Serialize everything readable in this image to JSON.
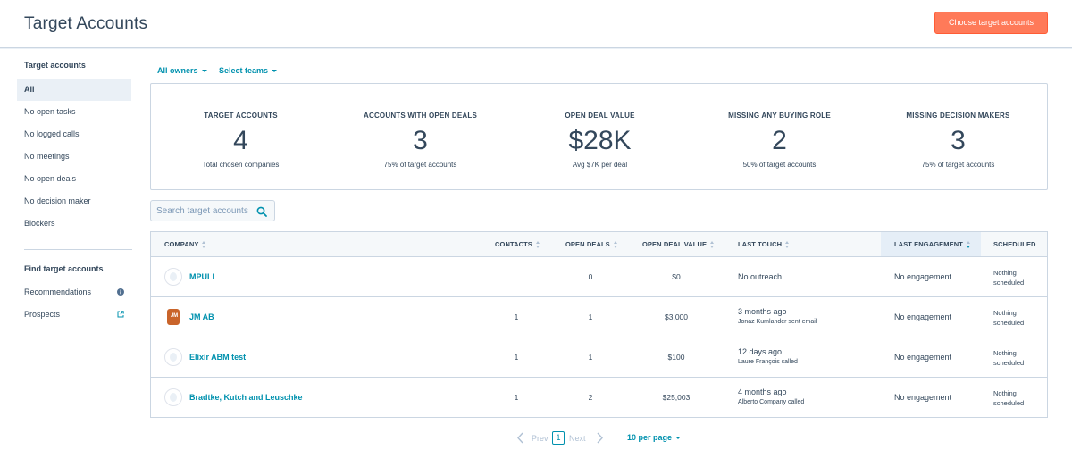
{
  "header": {
    "title": "Target Accounts",
    "cta_label": "Choose target accounts"
  },
  "sidebar": {
    "section1_heading": "Target accounts",
    "items": [
      {
        "label": "All"
      },
      {
        "label": "No open tasks"
      },
      {
        "label": "No logged calls"
      },
      {
        "label": "No meetings"
      },
      {
        "label": "No open deals"
      },
      {
        "label": "No decision maker"
      },
      {
        "label": "Blockers"
      }
    ],
    "section2_heading": "Find target accounts",
    "find_items": [
      {
        "label": "Recommendations",
        "icon": "info-icon"
      },
      {
        "label": "Prospects",
        "icon": "external-link-icon"
      }
    ]
  },
  "filters": {
    "owners": "All owners",
    "teams": "Select teams"
  },
  "stats": [
    {
      "label": "TARGET ACCOUNTS",
      "value": "4",
      "sub": "Total chosen companies"
    },
    {
      "label": "ACCOUNTS WITH OPEN DEALS",
      "value": "3",
      "sub": "75% of target accounts"
    },
    {
      "label": "OPEN DEAL VALUE",
      "value": "$28K",
      "sub": "Avg $7K per deal"
    },
    {
      "label": "MISSING ANY BUYING ROLE",
      "value": "2",
      "sub": "50% of target accounts"
    },
    {
      "label": "MISSING DECISION MAKERS",
      "value": "3",
      "sub": "75% of target accounts"
    }
  ],
  "search": {
    "placeholder": "Search target accounts"
  },
  "table": {
    "columns": {
      "company": "COMPANY",
      "contacts": "CONTACTS",
      "open_deals": "OPEN DEALS",
      "open_deal_value": "OPEN DEAL VALUE",
      "last_touch": "LAST TOUCH",
      "last_engagement": "LAST ENGAGEMENT",
      "scheduled": "SCHEDULED"
    },
    "rows": [
      {
        "company": "MPULL",
        "contacts": "",
        "open_deals": "0",
        "open_deal_value": "$0",
        "last_touch": "No outreach",
        "last_touch_detail": "",
        "last_engagement": "No engagement",
        "scheduled": "Nothing scheduled",
        "logo": false
      },
      {
        "company": "JM AB",
        "contacts": "1",
        "open_deals": "1",
        "open_deal_value": "$3,000",
        "last_touch": "3 months ago",
        "last_touch_detail": "Jonaz Kumlander sent email",
        "last_engagement": "No engagement",
        "scheduled": "Nothing scheduled",
        "logo": true,
        "logo_text": "JM"
      },
      {
        "company": "Elixir ABM test",
        "contacts": "1",
        "open_deals": "1",
        "open_deal_value": "$100",
        "last_touch": "12 days ago",
        "last_touch_detail": "Laure François called",
        "last_engagement": "No engagement",
        "scheduled": "Nothing scheduled",
        "logo": false
      },
      {
        "company": "Bradtke, Kutch and Leuschke",
        "contacts": "1",
        "open_deals": "2",
        "open_deal_value": "$25,003",
        "last_touch": "4 months ago",
        "last_touch_detail": "Alberto Company called",
        "last_engagement": "No engagement",
        "scheduled": "Nothing scheduled",
        "logo": false
      }
    ]
  },
  "pagination": {
    "prev": "Prev",
    "current": "1",
    "next": "Next",
    "per_page": "10 per page"
  },
  "colors": {
    "accent": "#0091ae",
    "cta": "#ff7a59",
    "text": "#33475b",
    "border": "#cbd6e2"
  }
}
